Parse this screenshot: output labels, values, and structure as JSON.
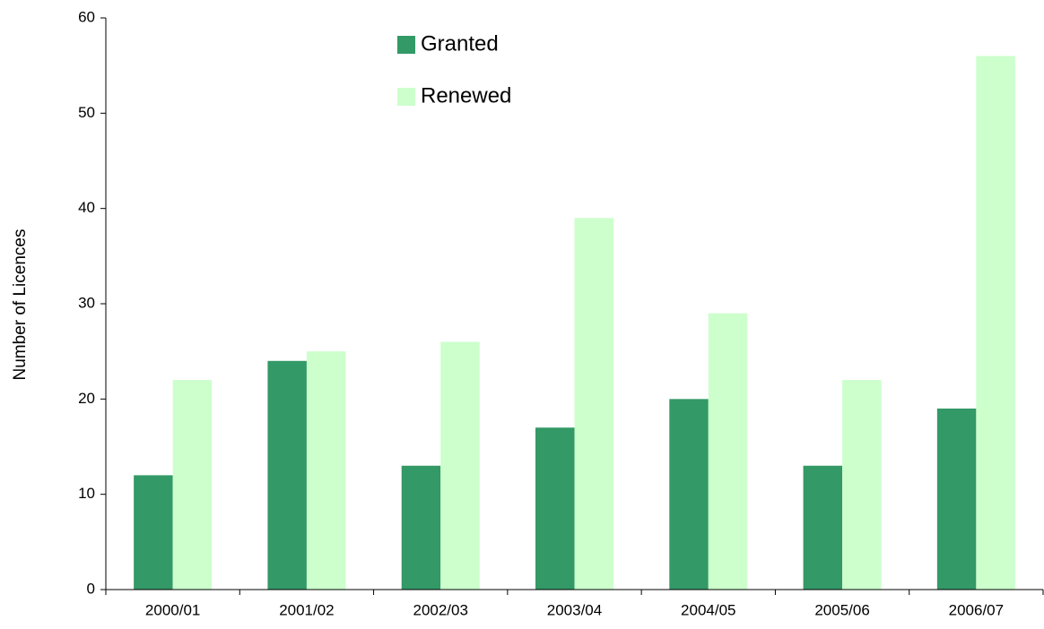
{
  "chart_data": {
    "type": "bar",
    "y_label": "Number of Licences",
    "categories": [
      "2000/01",
      "2001/02",
      "2002/03",
      "2003/04",
      "2004/05",
      "2005/06",
      "2006/07"
    ],
    "series": [
      {
        "name": "Granted",
        "color": "#339966",
        "values": [
          12,
          24,
          13,
          17,
          20,
          13,
          19
        ]
      },
      {
        "name": "Renewed",
        "color": "#ccffcc",
        "values": [
          22,
          25,
          26,
          39,
          29,
          22,
          56
        ]
      }
    ],
    "ylim": [
      0,
      60
    ],
    "yticks": [
      0,
      10,
      20,
      30,
      40,
      50,
      60
    ],
    "grid": false,
    "legend": "top"
  }
}
